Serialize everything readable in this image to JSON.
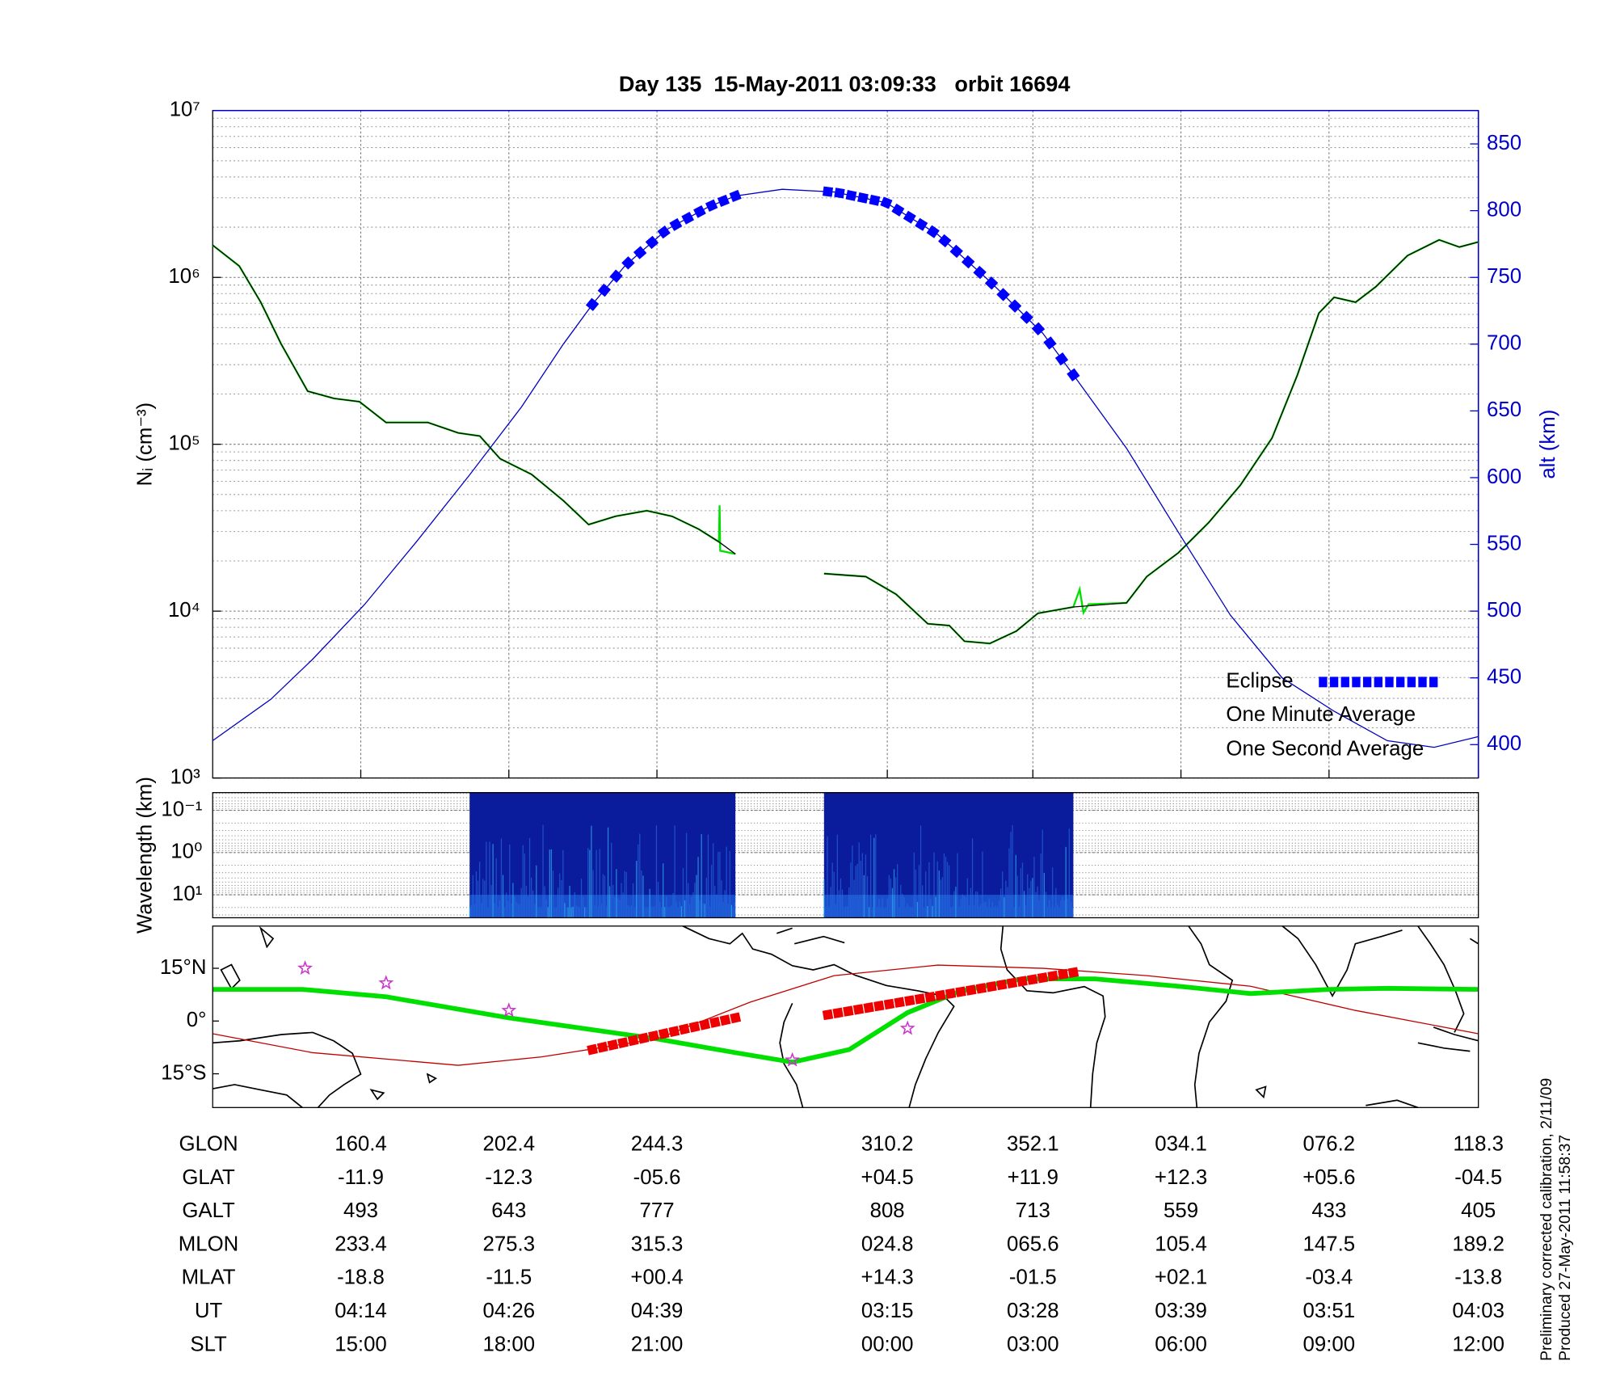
{
  "chart_data": [
    {
      "type": "line",
      "title": "Day 135  15-May-2011 03:09:33   orbit 16694",
      "ylabel": "Nᵢ (cm⁻³)",
      "y2label": "alt (km)",
      "log_y": true,
      "grid": true,
      "legend": "lower right",
      "xlim": [
        0,
        100
      ],
      "xticks": [
        11.7,
        23.4,
        35.1,
        53.3,
        64.8,
        76.5,
        88.2,
        100
      ],
      "ylim": [
        1000,
        10000000
      ],
      "yticks": [
        {
          "value": 1000,
          "label": "10³"
        },
        {
          "value": 10000,
          "label": "10⁴"
        },
        {
          "value": 100000,
          "label": "10⁵"
        },
        {
          "value": 1000000,
          "label": "10⁶"
        },
        {
          "value": 10000000,
          "label": "10⁷"
        }
      ],
      "y2lim": [
        375,
        875
      ],
      "y2ticks": [
        400,
        450,
        500,
        550,
        600,
        650,
        700,
        750,
        800,
        850
      ],
      "eclipse": {
        "name": "Eclipse",
        "color": "#0000ff",
        "ranges": [
          [
            30.0,
            41.3
          ],
          [
            48.6,
            68.0
          ]
        ]
      },
      "series": [
        {
          "name": "One Second Average",
          "color": "#00e000",
          "x": [
            0,
            2.1,
            3.8,
            5.4,
            7.5,
            9.6,
            11.6,
            13.7,
            17.0,
            19.4,
            21.1,
            22.7,
            25.2,
            27.7,
            29.7,
            31.8,
            34.3,
            36.3,
            38.4,
            40.0,
            40.05,
            40.1,
            41.3,
            45,
            48.3,
            51.6,
            54.0,
            56.5,
            58.2,
            59.4,
            61.4,
            63.5,
            65.2,
            68.0,
            68.5,
            68.8,
            69.2,
            72.2,
            73.8,
            76.3,
            78.7,
            81.2,
            83.7,
            85.7,
            87.4,
            88.6,
            90.3,
            91.9,
            94.4,
            96.9,
            98.5,
            100
          ],
          "values": [
            1560000,
            1170000,
            710000,
            400000,
            208000,
            188000,
            180000,
            135000,
            135000,
            117000,
            112000,
            82000,
            66000,
            46000,
            33000,
            37000,
            40000,
            37000,
            31000,
            26000,
            43000,
            23000,
            22000,
            null,
            16800,
            16100,
            12600,
            8400,
            8200,
            6600,
            6400,
            7600,
            9700,
            10600,
            13500,
            9800,
            11000,
            11200,
            16100,
            22400,
            34000,
            57000,
            109000,
            260000,
            610000,
            760000,
            710000,
            880000,
            1350000,
            1680000,
            1520000,
            1630000
          ]
        },
        {
          "name": "One Minute Average",
          "color": "#000000",
          "x": [
            0,
            2.1,
            3.8,
            5.4,
            7.5,
            9.6,
            11.6,
            13.7,
            17.0,
            19.4,
            21.1,
            22.7,
            25.2,
            27.7,
            29.7,
            31.8,
            34.3,
            36.3,
            38.4,
            40.0,
            41.3,
            45,
            48.3,
            51.6,
            54.0,
            56.5,
            58.2,
            59.4,
            61.4,
            63.5,
            65.2,
            68.0,
            72.2,
            73.8,
            76.3,
            78.7,
            81.2,
            83.7,
            85.7,
            87.4,
            88.6,
            90.3,
            91.9,
            94.4,
            96.9,
            98.5,
            100
          ],
          "values": [
            1560000,
            1170000,
            710000,
            400000,
            208000,
            188000,
            180000,
            135000,
            135000,
            117000,
            112000,
            82000,
            66000,
            46000,
            33000,
            37000,
            40000,
            37000,
            31000,
            26000,
            22000,
            null,
            16800,
            16100,
            12600,
            8400,
            8200,
            6600,
            6400,
            7600,
            9700,
            10600,
            11200,
            16100,
            22400,
            34000,
            57000,
            109000,
            260000,
            610000,
            760000,
            710000,
            880000,
            1350000,
            1680000,
            1520000,
            1630000
          ]
        },
        {
          "axis": "y2",
          "color": "#0000c0",
          "x": [
            0,
            4.6,
            7.9,
            12.0,
            16.1,
            20.3,
            24.4,
            27.7,
            30.1,
            32.6,
            35.9,
            39.2,
            41.3,
            45.0,
            49.1,
            53.2,
            57.3,
            61.4,
            65.6,
            68.0,
            72.2,
            76.3,
            80.4,
            84.5,
            88.6,
            92.8,
            96.5,
            100
          ],
          "values": [
            403,
            434,
            464,
            505,
            552,
            602,
            653,
            700,
            731,
            759,
            786,
            803,
            811,
            816,
            814,
            806,
            782,
            747,
            708,
            677,
            622,
            559,
            497,
            450,
            425,
            403,
            398,
            406
          ]
        }
      ]
    },
    {
      "type": "spectrogram",
      "ylabel": "Wavelength (km)",
      "log_y": true,
      "xlim": [
        0,
        100
      ],
      "ylim": [
        35,
        0.038
      ],
      "yticks": [
        {
          "value": 0.1,
          "label": "10⁻¹"
        },
        {
          "value": 1,
          "label": "10⁰"
        },
        {
          "value": 10,
          "label": "10¹"
        }
      ],
      "segments": [
        [
          20.3,
          41.3
        ],
        [
          48.3,
          68.0
        ]
      ]
    },
    {
      "type": "map",
      "xlim": [
        0,
        100
      ],
      "ylim": [
        -24.6,
        27
      ],
      "yticks": [
        {
          "value": 15,
          "label": "15°N"
        },
        {
          "value": 0,
          "label": "0°"
        },
        {
          "value": -15,
          "label": "15°S"
        }
      ],
      "series": [
        {
          "color": "#c00000",
          "x": [
            0,
            7.9,
            19.4,
            26.0,
            35.1,
            42.5,
            49.1,
            57.3,
            65.6,
            73.8,
            82.0,
            90.3,
            100
          ],
          "values": [
            -3.6,
            -9,
            -12.6,
            -10.2,
            -5.1,
            5.4,
            12.9,
            15.9,
            15,
            12.9,
            9.9,
            3,
            -3.6
          ]
        },
        {
          "color": "#00e000",
          "x": [
            0,
            7.1,
            13.7,
            23.4,
            35.1,
            41.3,
            45.8,
            50.3,
            54.9,
            59.0,
            63.9,
            69.7,
            76.3,
            82.0,
            88.2,
            92.8,
            100
          ],
          "values": [
            9,
            9,
            6.9,
            0.9,
            -5.1,
            -9,
            -11.7,
            -8.1,
            2.4,
            8.4,
            12,
            12,
            9.9,
            7.8,
            9,
            9.3,
            9
          ]
        }
      ],
      "eclipse": {
        "color": "#ee0000",
        "x": [
          30.0,
          41.3,
          45,
          48.6,
          68.0
        ],
        "values": [
          -8.1,
          0.9,
          null,
          1.8,
          13.8
        ]
      },
      "stars": {
        "color": "#cc33cc",
        "x": [
          7.3,
          13.7,
          23.4,
          45.8,
          54.9
        ],
        "values": [
          15,
          10.8,
          3,
          -11.1,
          -2.1
        ]
      }
    }
  ],
  "table": {
    "rows": [
      [
        "GLON",
        "160.4",
        "202.4",
        "244.3",
        "310.2",
        "352.1",
        "034.1",
        "076.2",
        "118.3"
      ],
      [
        "GLAT",
        "-11.9",
        "-12.3",
        "-05.6",
        "+04.5",
        "+11.9",
        "+12.3",
        "+05.6",
        "-04.5"
      ],
      [
        "GALT",
        "493",
        "643",
        "777",
        "808",
        "713",
        "559",
        "433",
        "405"
      ],
      [
        "MLON",
        "233.4",
        "275.3",
        "315.3",
        "024.8",
        "065.6",
        "105.4",
        "147.5",
        "189.2"
      ],
      [
        "MLAT",
        "-18.8",
        "-11.5",
        "+00.4",
        "+14.3",
        "-01.5",
        "+02.1",
        "-03.4",
        "-13.8"
      ],
      [
        "UT",
        "04:14",
        "04:26",
        "04:39",
        "03:15",
        "03:28",
        "03:39",
        "03:51",
        "04:03"
      ],
      [
        "SLT",
        "15:00",
        "18:00",
        "21:00",
        "00:00",
        "03:00",
        "06:00",
        "09:00",
        "12:00"
      ]
    ]
  },
  "footnotes": [
    "Preliminary corrected calibration, 2/11/09",
    "Produced 27-May-2011 11:58:37"
  ]
}
